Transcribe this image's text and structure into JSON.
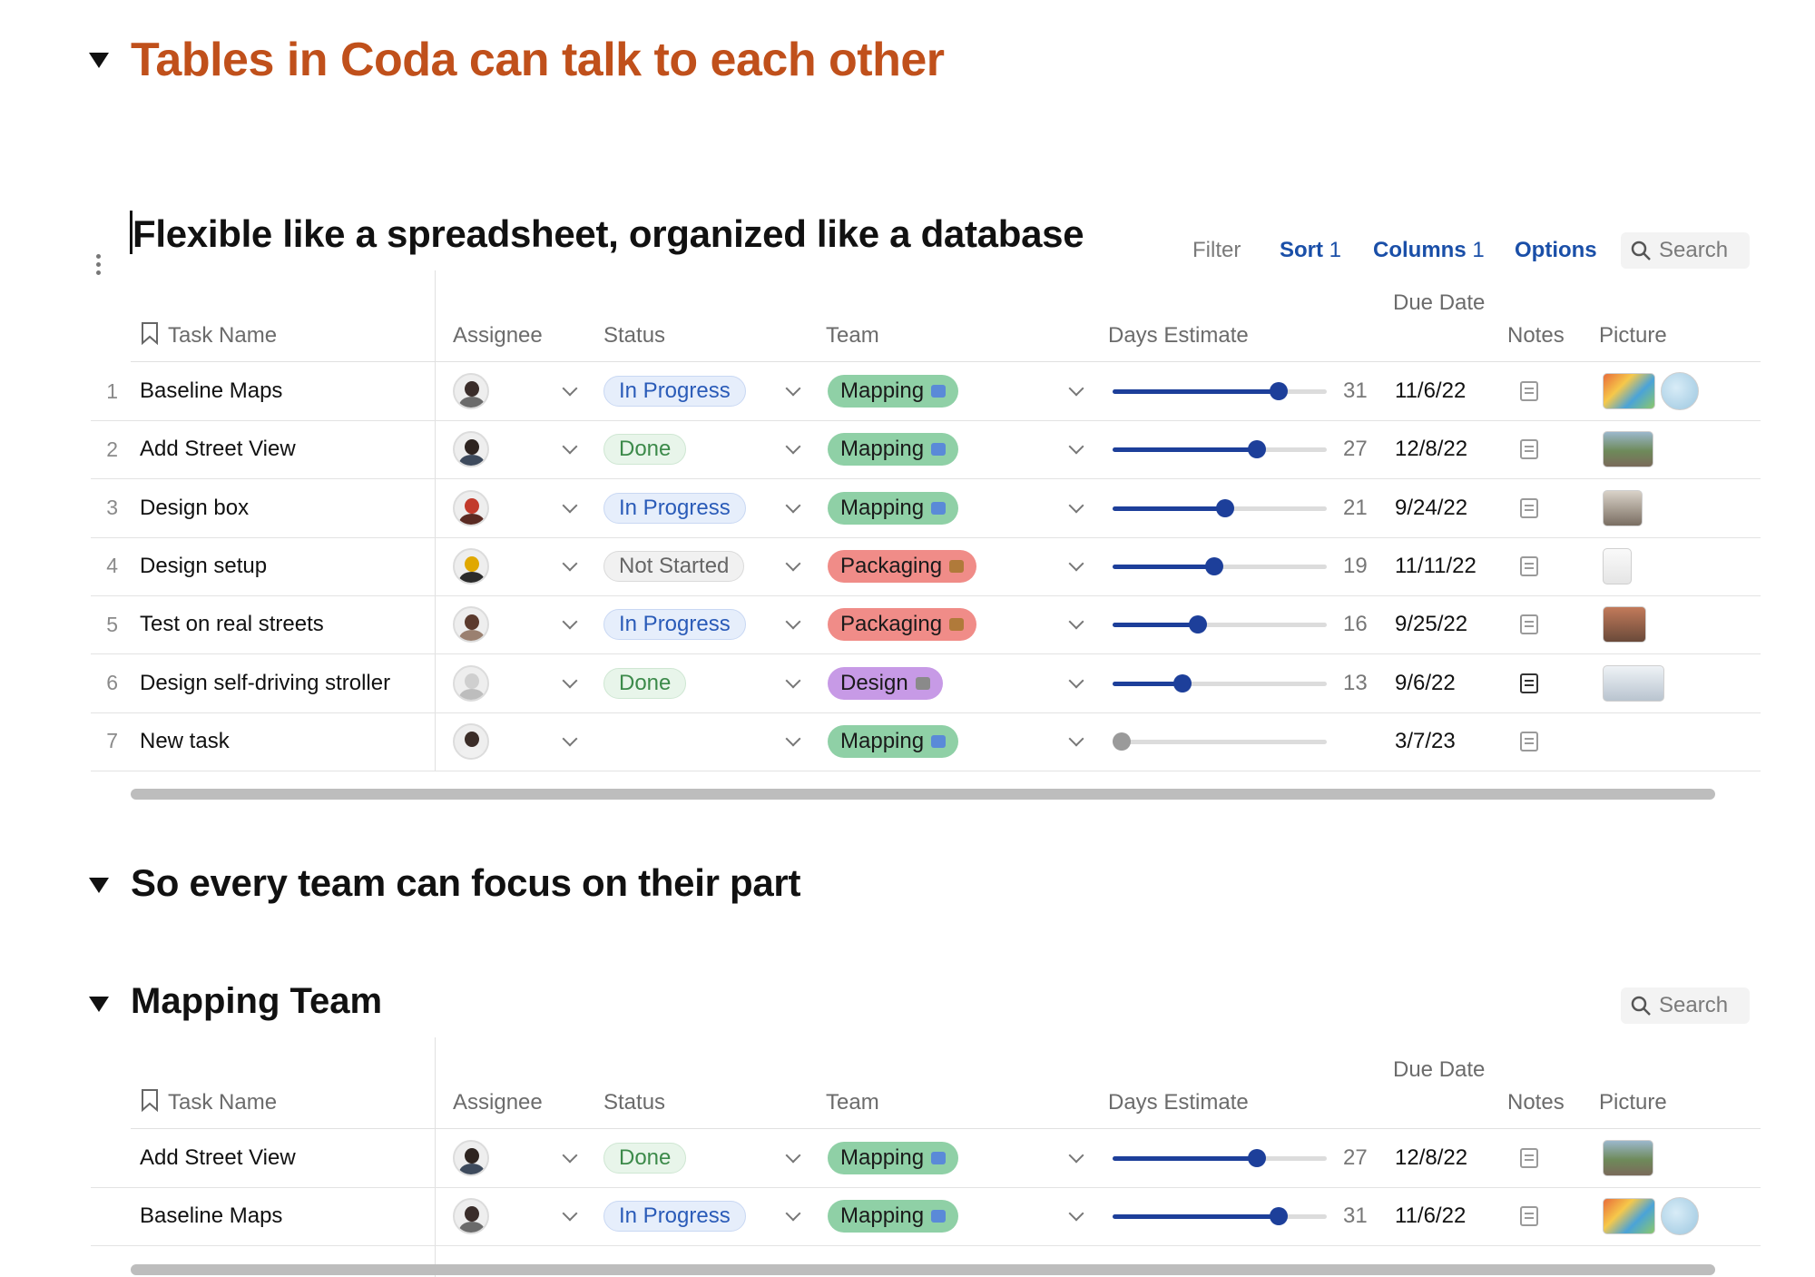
{
  "heading1": "Tables in Coda can talk to each other",
  "heading2": "Flexible like a spreadsheet, organized like a database",
  "toolbar": {
    "filter": "Filter",
    "sort_label": "Sort",
    "sort_count": "1",
    "columns_label": "Columns",
    "columns_count": "1",
    "options": "Options",
    "search": "Search"
  },
  "columns": {
    "task_name": "Task Name",
    "assignee": "Assignee",
    "status": "Status",
    "team": "Team",
    "days_estimate": "Days Estimate",
    "due_date": "Due Date",
    "notes": "Notes",
    "picture": "Picture"
  },
  "slider_max": 40,
  "tasks": [
    {
      "num": "1",
      "name": "Baseline Maps",
      "status": "In Progress",
      "team": "Mapping",
      "days": 31,
      "days_label": "31",
      "due": "11/6/22",
      "pictures": [
        "map",
        "globe"
      ]
    },
    {
      "num": "2",
      "name": "Add Street View",
      "status": "Done",
      "team": "Mapping",
      "days": 27,
      "days_label": "27",
      "due": "12/8/22",
      "pictures": [
        "street"
      ]
    },
    {
      "num": "3",
      "name": "Design box",
      "status": "In Progress",
      "team": "Mapping",
      "days": 21,
      "days_label": "21",
      "due": "9/24/22",
      "pictures": [
        "box"
      ]
    },
    {
      "num": "4",
      "name": "Design setup",
      "status": "Not Started",
      "team": "Packaging",
      "days": 19,
      "days_label": "19",
      "due": "11/11/22",
      "pictures": [
        "sketch"
      ]
    },
    {
      "num": "5",
      "name": "Test on real streets",
      "status": "In Progress",
      "team": "Packaging",
      "days": 16,
      "days_label": "16",
      "due": "9/25/22",
      "pictures": [
        "road"
      ]
    },
    {
      "num": "6",
      "name": "Design self-driving stroller",
      "status": "Done",
      "team": "Design",
      "days": 13,
      "days_label": "13",
      "due": "9/6/22",
      "pictures": [
        "stroller"
      ]
    },
    {
      "num": "7",
      "name": "New task",
      "status": "",
      "team": "Mapping",
      "days": 0,
      "days_label": "",
      "due": "3/7/23",
      "pictures": []
    }
  ],
  "heading3": "So every team can focus on their part",
  "heading4": "Mapping Team",
  "mapping_search": "Search",
  "mapping_tasks": [
    {
      "name": "Add Street View",
      "status": "Done",
      "team": "Mapping",
      "days": 27,
      "days_label": "27",
      "due": "12/8/22",
      "pictures": [
        "street"
      ]
    },
    {
      "name": "Baseline Maps",
      "status": "In Progress",
      "team": "Mapping",
      "days": 31,
      "days_label": "31",
      "due": "11/6/22",
      "pictures": [
        "map",
        "globe"
      ]
    }
  ],
  "colors": {
    "accent": "#c0501b",
    "link_blue": "#1a4fa8",
    "slider_blue": "#1d3f9a",
    "team_mapping": "#8fd0a6",
    "team_packaging": "#f08c88",
    "team_design": "#c79ae6"
  }
}
